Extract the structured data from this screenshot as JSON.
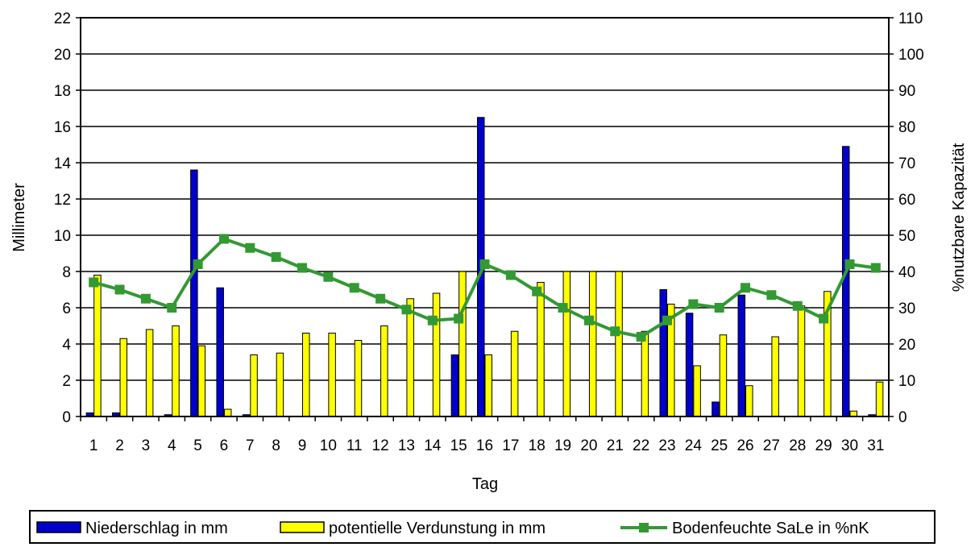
{
  "chart_data": {
    "type": "bar",
    "title": "",
    "xlabel": "Tag",
    "ylabel": "Millimeter",
    "y2label": "%nutzbare Kapazität",
    "ylim": [
      0,
      22
    ],
    "y2lim": [
      0,
      110
    ],
    "yticks": [
      "0",
      "2",
      "4",
      "6",
      "8",
      "10",
      "12",
      "14",
      "16",
      "18",
      "20",
      "22"
    ],
    "y2ticks": [
      "0",
      "10",
      "20",
      "30",
      "40",
      "50",
      "60",
      "70",
      "80",
      "90",
      "100",
      "110"
    ],
    "grid": true,
    "legend_position": "bottom",
    "categories": [
      "1",
      "2",
      "3",
      "4",
      "5",
      "6",
      "7",
      "8",
      "9",
      "10",
      "11",
      "12",
      "13",
      "14",
      "15",
      "16",
      "17",
      "18",
      "19",
      "20",
      "21",
      "22",
      "23",
      "24",
      "25",
      "26",
      "27",
      "28",
      "29",
      "30",
      "31"
    ],
    "series": [
      {
        "name": "Niederschlag in mm",
        "type": "bar",
        "axis": "left",
        "color": "#0000cc",
        "values": [
          0.2,
          0.2,
          0,
          0.1,
          13.6,
          7.1,
          0.1,
          0,
          0,
          0,
          0,
          0,
          0,
          0,
          3.4,
          16.5,
          0,
          0,
          0,
          0,
          0,
          0,
          7.0,
          5.7,
          0.8,
          6.7,
          0,
          0,
          0,
          14.9,
          0.1
        ]
      },
      {
        "name": "potentielle Verdunstung in mm",
        "type": "bar",
        "axis": "left",
        "color": "#ffff00",
        "values": [
          7.8,
          4.3,
          4.8,
          5.0,
          3.9,
          0.4,
          3.4,
          3.5,
          4.6,
          4.6,
          4.2,
          5.0,
          6.5,
          6.8,
          8.0,
          3.4,
          4.7,
          7.4,
          8.0,
          8.0,
          8.0,
          4.7,
          6.2,
          2.8,
          4.5,
          1.7,
          4.4,
          6.1,
          6.9,
          0.3,
          1.9
        ]
      },
      {
        "name": "Bodenfeuchte SaLe in %nK",
        "type": "line",
        "axis": "right",
        "color": "#339933",
        "values": [
          37,
          35,
          32.5,
          30,
          42,
          49,
          46.5,
          44,
          41,
          38.5,
          35.5,
          32.5,
          29.5,
          26.5,
          27,
          42,
          39,
          34.5,
          30,
          26.5,
          23.5,
          22,
          26.5,
          31,
          30,
          35.5,
          33.5,
          30.5,
          27,
          42,
          41
        ]
      }
    ]
  }
}
